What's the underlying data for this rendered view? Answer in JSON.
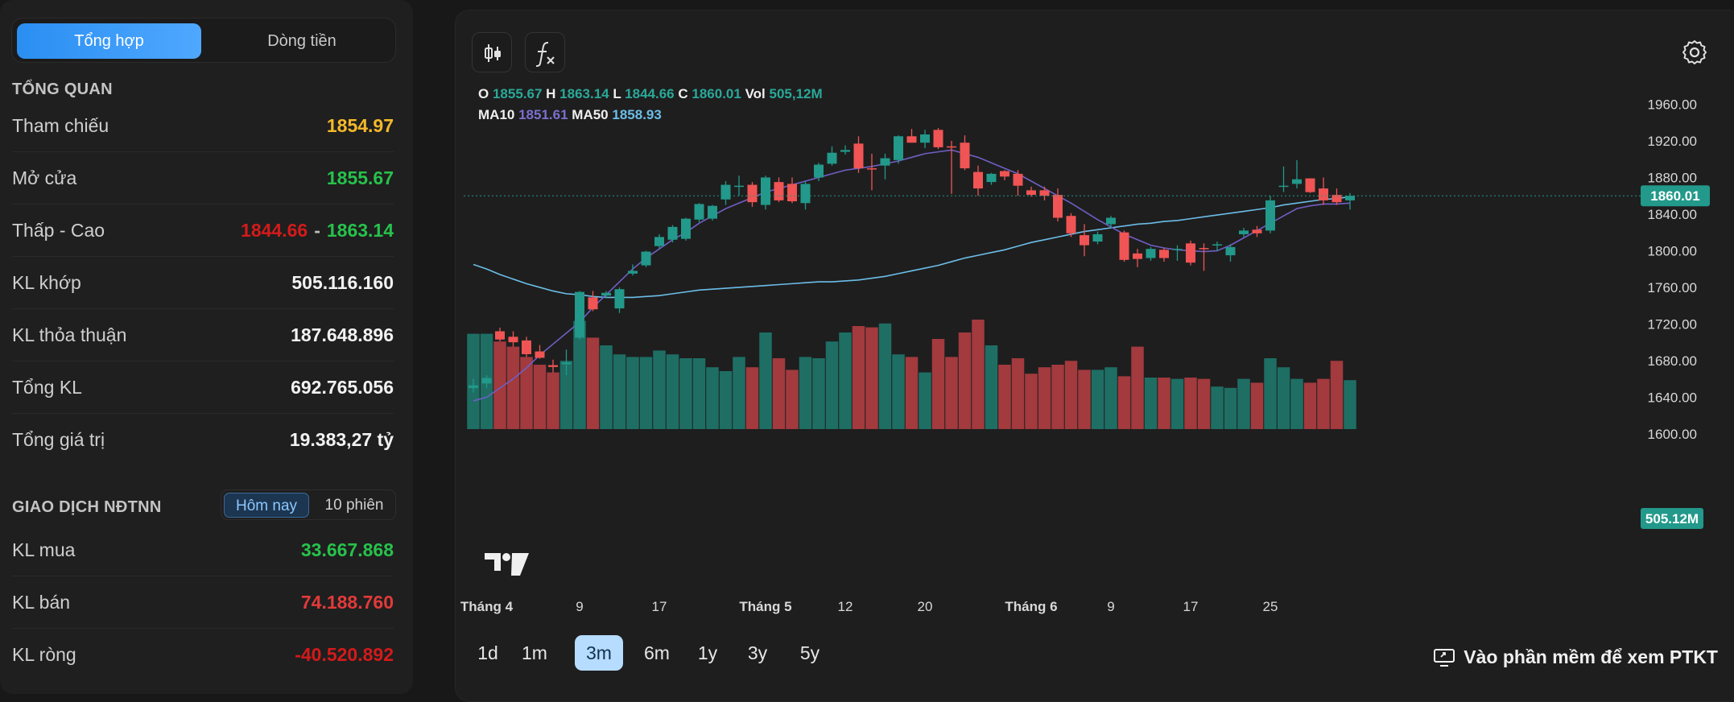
{
  "left": {
    "tabs": [
      {
        "label": "Tổng hợp",
        "active": true
      },
      {
        "label": "Dòng tiền",
        "active": false
      }
    ],
    "overview": {
      "title": "TỔNG QUAN",
      "rows": [
        {
          "label": "Tham chiếu",
          "value": "1854.97"
        },
        {
          "label": "Mở cửa",
          "value": "1855.67"
        },
        {
          "label": "Thấp - Cao",
          "low": "1844.66",
          "sep": "-",
          "high": "1863.14"
        },
        {
          "label": "KL khớp",
          "value": "505.116.160"
        },
        {
          "label": "KL thỏa thuận",
          "value": "187.648.896"
        },
        {
          "label": "Tổng KL",
          "value": "692.765.056"
        },
        {
          "label": "Tổng giá trị",
          "value": "19.383,27 tỷ"
        }
      ]
    },
    "foreign": {
      "title": "GIAO DỊCH NĐTNN",
      "tabs": [
        {
          "label": "Hôm nay",
          "active": true
        },
        {
          "label": "10 phiên",
          "active": false
        }
      ],
      "rows": [
        {
          "label": "KL mua",
          "value": "33.667.868"
        },
        {
          "label": "KL bán",
          "value": "74.188.760"
        },
        {
          "label": "KL ròng",
          "value": "-40.520.892"
        }
      ]
    }
  },
  "chart": {
    "legend": {
      "o_label": "O",
      "o": "1855.67",
      "h_label": "H",
      "h": "1863.14",
      "l_label": "L",
      "l": "1844.66",
      "c_label": "C",
      "c": "1860.01",
      "vol_label": "Vol",
      "vol": "505,12M",
      "ma10_label": "MA10",
      "ma10": "1851.61",
      "ma50_label": "MA50",
      "ma50": "1858.93"
    },
    "last_price_tag": "1860.01",
    "last_volume_tag": "505.12M",
    "ranges": [
      "1d",
      "1m",
      "3m",
      "6m",
      "1y",
      "3y",
      "5y"
    ],
    "active_range": "3m",
    "ptkt_label": "Vào phần mềm để xem PTKT",
    "colors": {
      "up": "#22998a",
      "down": "#f05454",
      "ma10": "#6f5fc4",
      "ma50": "#6cbde8",
      "vol_up": "#1e6e64",
      "vol_down": "#a23a3e"
    }
  },
  "chart_data": {
    "type": "candlestick",
    "y_ticks": [
      "1960.00",
      "1920.00",
      "1880.00",
      "1840.00",
      "1800.00",
      "1760.00",
      "1720.00",
      "1680.00",
      "1640.00",
      "1600.00"
    ],
    "ylim": [
      1570,
      1978
    ],
    "x_tick_labels": [
      "Tháng 4",
      "9",
      "17",
      "Tháng 5",
      "12",
      "20",
      "Tháng 6",
      "9",
      "17",
      "25"
    ],
    "x_tick_index": [
      1,
      8,
      14,
      22,
      28,
      34,
      42,
      48,
      54,
      60
    ],
    "candles": [
      [
        1650,
        1660,
        1645,
        1653
      ],
      [
        1655,
        1664,
        1650,
        1661
      ],
      [
        1712,
        1716,
        1701,
        1703
      ],
      [
        1706,
        1712,
        1695,
        1700
      ],
      [
        1702,
        1706,
        1684,
        1687
      ],
      [
        1690,
        1697,
        1682,
        1683
      ],
      [
        1675,
        1681,
        1667,
        1673
      ],
      [
        1676,
        1692,
        1664,
        1678
      ],
      [
        1705,
        1756,
        1703,
        1755
      ],
      [
        1749,
        1756,
        1734,
        1736
      ],
      [
        1751,
        1756,
        1748,
        1754
      ],
      [
        1737,
        1760,
        1732,
        1758
      ],
      [
        1775,
        1785,
        1773,
        1778
      ],
      [
        1784,
        1800,
        1782,
        1799
      ],
      [
        1805,
        1818,
        1802,
        1815
      ],
      [
        1812,
        1828,
        1809,
        1826
      ],
      [
        1813,
        1836,
        1811,
        1835
      ],
      [
        1834,
        1852,
        1831,
        1851
      ],
      [
        1835,
        1850,
        1833,
        1849
      ],
      [
        1856,
        1876,
        1850,
        1872
      ],
      [
        1870,
        1882,
        1860,
        1871
      ],
      [
        1872,
        1875,
        1848,
        1853
      ],
      [
        1850,
        1882,
        1845,
        1880
      ],
      [
        1875,
        1880,
        1853,
        1855
      ],
      [
        1873,
        1880,
        1852,
        1854
      ],
      [
        1852,
        1876,
        1845,
        1873
      ],
      [
        1880,
        1896,
        1876,
        1894
      ],
      [
        1895,
        1914,
        1893,
        1907
      ],
      [
        1908,
        1915,
        1905,
        1910
      ],
      [
        1917,
        1925,
        1885,
        1890
      ],
      [
        1890,
        1906,
        1866,
        1889
      ],
      [
        1893,
        1906,
        1878,
        1901
      ],
      [
        1899,
        1926,
        1895,
        1925
      ],
      [
        1925,
        1933,
        1918,
        1918
      ],
      [
        1918,
        1932,
        1912,
        1927
      ],
      [
        1932,
        1934,
        1911,
        1913
      ],
      [
        1914,
        1920,
        1862,
        1913
      ],
      [
        1918,
        1926,
        1888,
        1890
      ],
      [
        1886,
        1893,
        1860,
        1868
      ],
      [
        1875,
        1885,
        1872,
        1884
      ],
      [
        1887,
        1888,
        1877,
        1881
      ],
      [
        1884,
        1888,
        1860,
        1871
      ],
      [
        1866,
        1870,
        1859,
        1861
      ],
      [
        1866,
        1870,
        1855,
        1860
      ],
      [
        1861,
        1868,
        1832,
        1836
      ],
      [
        1838,
        1841,
        1815,
        1819
      ],
      [
        1817,
        1829,
        1794,
        1806
      ],
      [
        1810,
        1821,
        1807,
        1818
      ],
      [
        1829,
        1838,
        1825,
        1836
      ],
      [
        1820,
        1822,
        1788,
        1790
      ],
      [
        1797,
        1802,
        1782,
        1791
      ],
      [
        1792,
        1804,
        1789,
        1802
      ],
      [
        1801,
        1803,
        1788,
        1792
      ],
      [
        1802,
        1806,
        1789,
        1802
      ],
      [
        1808,
        1811,
        1784,
        1787
      ],
      [
        1803,
        1808,
        1778,
        1802
      ],
      [
        1806,
        1810,
        1800,
        1807
      ],
      [
        1795,
        1807,
        1788,
        1804
      ],
      [
        1818,
        1825,
        1815,
        1822
      ],
      [
        1823,
        1827,
        1815,
        1819
      ],
      [
        1822,
        1860,
        1819,
        1855
      ],
      [
        1870,
        1892,
        1864,
        1871
      ],
      [
        1873,
        1899,
        1868,
        1878
      ],
      [
        1879,
        1879,
        1863,
        1864
      ],
      [
        1868,
        1880,
        1850,
        1855
      ],
      [
        1861,
        1868,
        1850,
        1853
      ],
      [
        1855,
        1863,
        1845,
        1860
      ]
    ],
    "volumes": [
      0.74,
      0.74,
      0.68,
      0.64,
      0.56,
      0.5,
      0.44,
      0.53,
      0.84,
      0.71,
      0.65,
      0.58,
      0.56,
      0.56,
      0.61,
      0.58,
      0.55,
      0.55,
      0.48,
      0.45,
      0.56,
      0.48,
      0.75,
      0.55,
      0.46,
      0.56,
      0.55,
      0.68,
      0.75,
      0.8,
      0.79,
      0.82,
      0.58,
      0.56,
      0.44,
      0.7,
      0.56,
      0.75,
      0.85,
      0.65,
      0.5,
      0.55,
      0.43,
      0.48,
      0.5,
      0.53,
      0.46,
      0.46,
      0.48,
      0.41,
      0.64,
      0.4,
      0.4,
      0.39,
      0.4,
      0.39,
      0.33,
      0.32,
      0.39,
      0.36,
      0.55,
      0.48,
      0.39,
      0.36,
      0.39,
      0.53,
      0.38
    ],
    "ma10_y": [
      1636,
      1640,
      1650,
      1660,
      1672,
      1686,
      1698,
      1710,
      1722,
      1738,
      1752,
      1766,
      1780,
      1792,
      1802,
      1812,
      1820,
      1830,
      1838,
      1846,
      1852,
      1858,
      1864,
      1868,
      1872,
      1876,
      1880,
      1884,
      1888,
      1890,
      1892,
      1895,
      1898,
      1902,
      1906,
      1908,
      1910,
      1906,
      1902,
      1896,
      1890,
      1884,
      1876,
      1868,
      1860,
      1852,
      1843,
      1834,
      1826,
      1818,
      1812,
      1806,
      1803,
      1801,
      1800,
      1799,
      1800,
      1806,
      1814,
      1822,
      1830,
      1838,
      1846,
      1849,
      1851,
      1851,
      1852
    ],
    "ma50_y": [
      1785,
      1780,
      1774,
      1769,
      1764,
      1760,
      1756,
      1753,
      1752,
      1750,
      1749,
      1749,
      1749,
      1750,
      1751,
      1753,
      1755,
      1757,
      1758,
      1759,
      1760,
      1761,
      1762,
      1763,
      1764,
      1765,
      1766,
      1766,
      1767,
      1768,
      1770,
      1772,
      1775,
      1778,
      1781,
      1784,
      1788,
      1792,
      1795,
      1798,
      1801,
      1805,
      1809,
      1812,
      1815,
      1818,
      1821,
      1823,
      1825,
      1827,
      1829,
      1830,
      1832,
      1833,
      1835,
      1837,
      1839,
      1841,
      1843,
      1845,
      1847,
      1850,
      1852,
      1854,
      1856,
      1857,
      1859
    ]
  }
}
